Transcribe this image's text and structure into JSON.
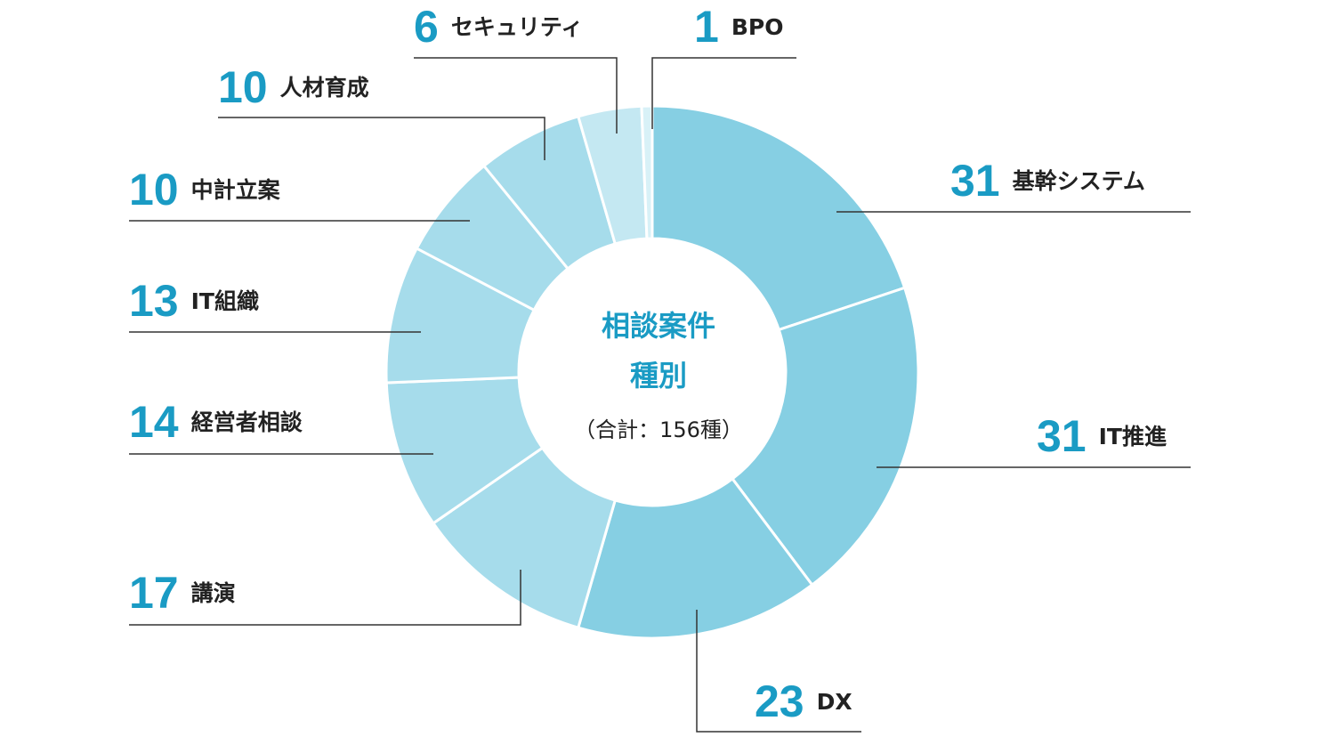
{
  "chart_data": {
    "type": "donut",
    "title_lines": [
      "相談案件",
      "種別"
    ],
    "subtitle": "（合計：156種）",
    "categories": [
      "基幹システム",
      "IT推進",
      "DX",
      "講演",
      "経営者相談",
      "IT組織",
      "中計立案",
      "人材育成",
      "セキュリティ",
      "BPO"
    ],
    "values": [
      31,
      31,
      23,
      17,
      14,
      13,
      10,
      10,
      6,
      1
    ],
    "colors": [
      "#86cfe3",
      "#86cfe3",
      "#86cfe3",
      "#a6dceb",
      "#a6dceb",
      "#a6dceb",
      "#a6dceb",
      "#a6dceb",
      "#c4e8f2",
      "#d8f1f7"
    ]
  }
}
